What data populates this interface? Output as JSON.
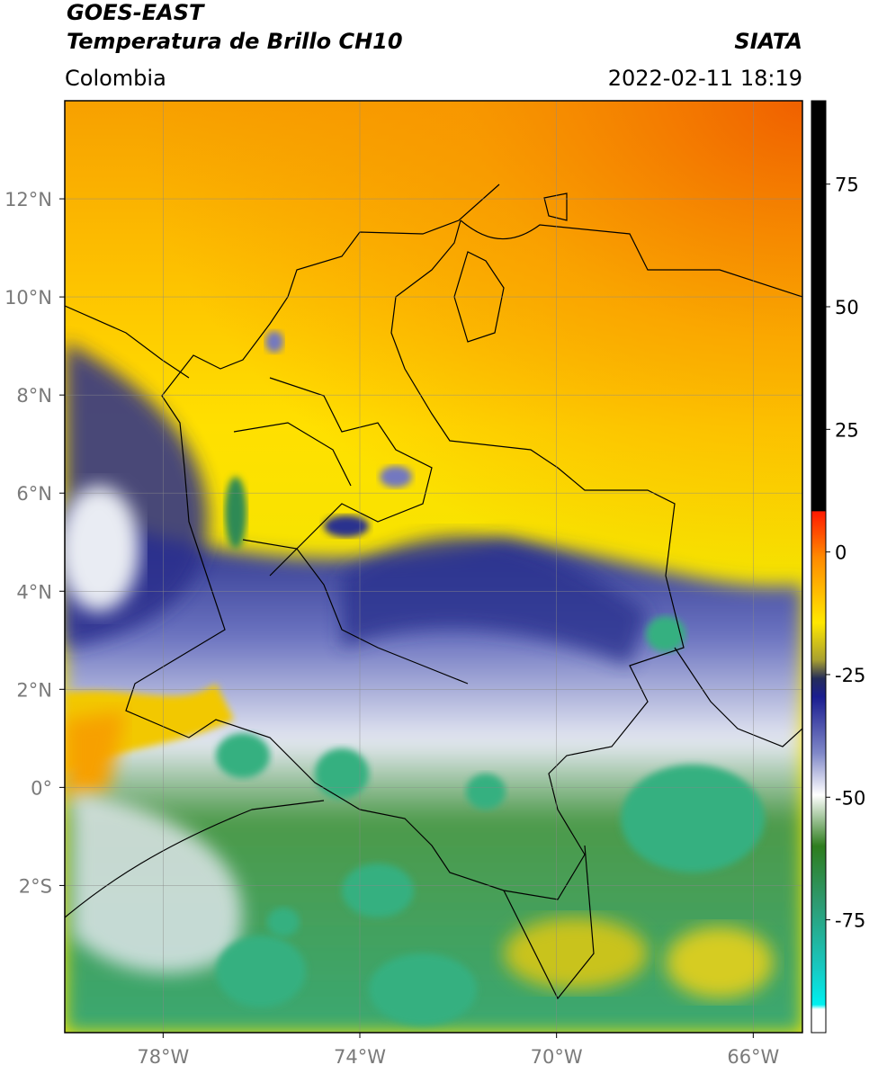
{
  "header": {
    "satellite": "GOES-EAST",
    "product": "Temperatura de Brillo CH10",
    "region": "Colombia",
    "agency": "SIATA",
    "datetime": "2022-02-11 18:19"
  },
  "map": {
    "xlim": [
      -80,
      -65
    ],
    "ylim": [
      -5,
      14
    ],
    "lat_ticks": [
      {
        "value": 12,
        "label": "12°N"
      },
      {
        "value": 10,
        "label": "10°N"
      },
      {
        "value": 8,
        "label": "8°N"
      },
      {
        "value": 6,
        "label": "6°N"
      },
      {
        "value": 4,
        "label": "4°N"
      },
      {
        "value": 2,
        "label": "2°N"
      },
      {
        "value": 0,
        "label": "0°"
      },
      {
        "value": -2,
        "label": "2°S"
      }
    ],
    "lon_ticks": [
      {
        "value": -78,
        "label": "78°W"
      },
      {
        "value": -74,
        "label": "74°W"
      },
      {
        "value": -70,
        "label": "70°W"
      },
      {
        "value": -66,
        "label": "66°W"
      }
    ],
    "grid": true
  },
  "colorbar": {
    "clim": [
      -98,
      92
    ],
    "ticks": [
      75,
      50,
      25,
      0,
      -25,
      -50,
      -75
    ]
  }
}
